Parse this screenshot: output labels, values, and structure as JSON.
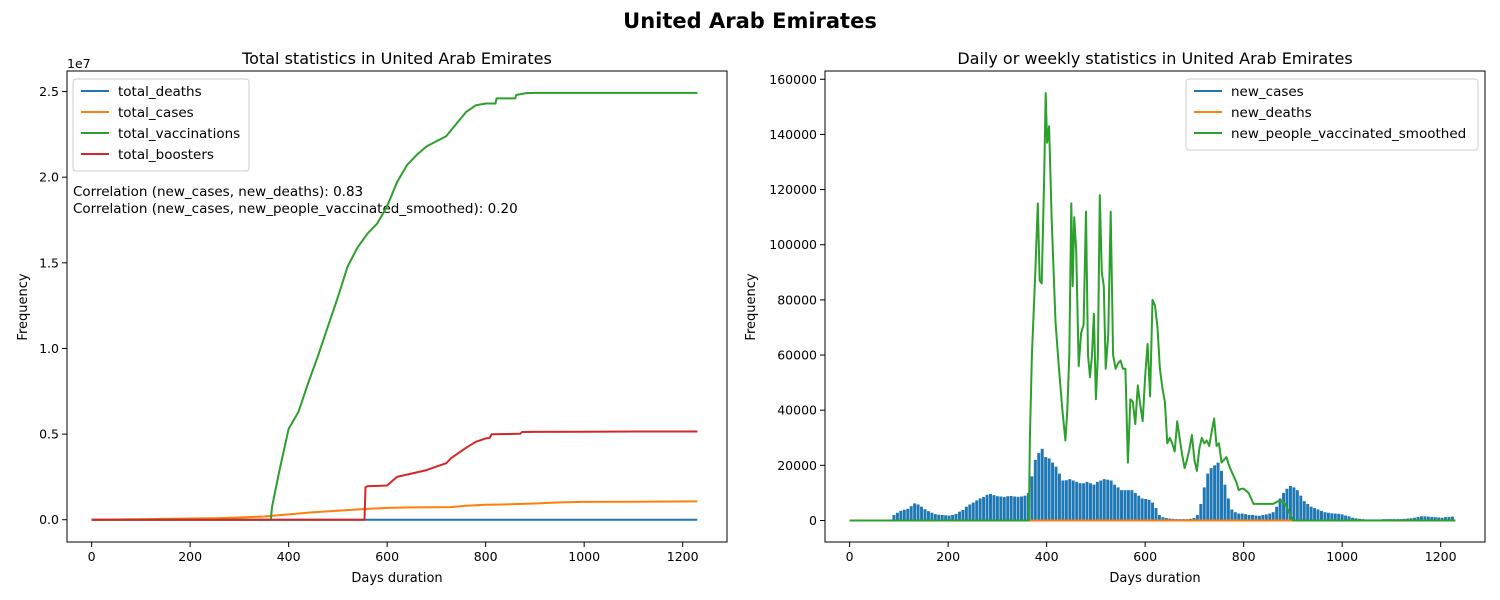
{
  "figure": {
    "title": "United Arab Emirates"
  },
  "chart_data": [
    {
      "type": "line",
      "title": "Total statistics in United Arab Emirates",
      "xlabel": "Days duration",
      "ylabel": "Frequency",
      "xlim": [
        -50,
        1290
      ],
      "ylim": [
        -1300000,
        26200000
      ],
      "offset_label": "1e7",
      "xticks": [
        0,
        200,
        400,
        600,
        800,
        1000,
        1200
      ],
      "yticks": [
        0,
        5000000,
        10000000,
        15000000,
        20000000,
        25000000
      ],
      "ytick_labels": [
        "0.0",
        "0.5",
        "1.0",
        "1.5",
        "2.0",
        "2.5"
      ],
      "legend": {
        "position": "upper-left"
      },
      "annotations": [
        "Correlation (new_cases, new_deaths): 0.83",
        "Correlation (new_cases, new_people_vaccinated_smoothed): 0.20"
      ],
      "series": [
        {
          "name": "total_deaths",
          "color": "#1f77b4",
          "x": [
            0,
            100,
            200,
            300,
            400,
            500,
            600,
            700,
            800,
            900,
            1000,
            1100,
            1230
          ],
          "y": [
            0,
            300,
            700,
            900,
            1500,
            2000,
            2200,
            2300,
            2350,
            2350,
            2350,
            2350,
            2350
          ]
        },
        {
          "name": "total_cases",
          "color": "#ff7f0e",
          "x": [
            0,
            100,
            150,
            200,
            250,
            300,
            350,
            400,
            450,
            500,
            550,
            600,
            650,
            700,
            730,
            760,
            800,
            850,
            900,
            950,
            1000,
            1100,
            1230
          ],
          "y": [
            0,
            30000,
            50000,
            70000,
            90000,
            130000,
            190000,
            310000,
            440000,
            530000,
            620000,
            690000,
            720000,
            730000,
            740000,
            820000,
            880000,
            900000,
            950000,
            1010000,
            1040000,
            1055000,
            1070000
          ]
        },
        {
          "name": "total_vaccinations",
          "color": "#2ca02c",
          "x": [
            0,
            364,
            366,
            380,
            400,
            420,
            440,
            460,
            480,
            500,
            520,
            540,
            560,
            580,
            600,
            620,
            640,
            660,
            680,
            700,
            720,
            740,
            760,
            780,
            800,
            820,
            822,
            860,
            862,
            880,
            900,
            1000,
            1100,
            1230
          ],
          "y": [
            0,
            0,
            700000,
            2700000,
            5300000,
            6300000,
            8000000,
            9600000,
            11300000,
            13000000,
            14800000,
            15900000,
            16700000,
            17300000,
            18300000,
            19700000,
            20700000,
            21300000,
            21800000,
            22100000,
            22400000,
            23100000,
            23800000,
            24200000,
            24300000,
            24300000,
            24600000,
            24600000,
            24800000,
            24900000,
            24920000,
            24920000,
            24920000,
            24920000
          ]
        },
        {
          "name": "total_boosters",
          "color": "#d62728",
          "x": [
            0,
            554,
            556,
            560,
            600,
            604,
            620,
            650,
            680,
            700,
            720,
            730,
            760,
            780,
            800,
            808,
            812,
            870,
            874,
            900,
            1000,
            1100,
            1230
          ],
          "y": [
            0,
            0,
            1900000,
            1950000,
            2000000,
            2100000,
            2500000,
            2700000,
            2900000,
            3100000,
            3300000,
            3600000,
            4200000,
            4550000,
            4750000,
            4770000,
            4990000,
            5020000,
            5120000,
            5130000,
            5140000,
            5150000,
            5150000
          ]
        }
      ]
    },
    {
      "type": "bar-line",
      "title": "Daily or weekly statistics in United Arab Emirates",
      "xlabel": "Days duration",
      "ylabel": "Frequency",
      "xlim": [
        -50,
        1290
      ],
      "ylim": [
        -7800,
        163000
      ],
      "xticks": [
        0,
        200,
        400,
        600,
        800,
        1000,
        1200
      ],
      "yticks": [
        0,
        20000,
        40000,
        60000,
        80000,
        100000,
        120000,
        140000,
        160000
      ],
      "legend": {
        "position": "upper-right"
      },
      "series": [
        {
          "name": "new_cases",
          "kind": "bar",
          "color": "#1f77b4",
          "x": [
            90,
            97,
            104,
            111,
            118,
            125,
            132,
            139,
            146,
            153,
            160,
            167,
            174,
            181,
            188,
            195,
            202,
            209,
            216,
            223,
            230,
            237,
            244,
            251,
            258,
            265,
            272,
            279,
            286,
            293,
            300,
            307,
            314,
            321,
            328,
            335,
            342,
            349,
            356,
            363,
            370,
            377,
            384,
            391,
            398,
            405,
            412,
            419,
            426,
            433,
            440,
            447,
            454,
            461,
            468,
            475,
            482,
            489,
            496,
            503,
            510,
            517,
            524,
            531,
            538,
            545,
            552,
            559,
            566,
            573,
            580,
            587,
            594,
            601,
            608,
            615,
            622,
            629,
            636,
            643,
            650,
            657,
            664,
            671,
            678,
            685,
            692,
            699,
            706,
            713,
            720,
            727,
            734,
            741,
            748,
            755,
            762,
            769,
            776,
            783,
            790,
            797,
            804,
            811,
            818,
            825,
            832,
            839,
            846,
            853,
            860,
            867,
            874,
            881,
            888,
            895,
            902,
            909,
            916,
            923,
            930,
            937,
            944,
            951,
            958,
            965,
            972,
            979,
            986,
            993,
            1000,
            1007,
            1014,
            1021,
            1028,
            1035,
            1042,
            1049,
            1056,
            1063,
            1070,
            1077,
            1084,
            1091,
            1098,
            1105,
            1112,
            1119,
            1126,
            1133,
            1140,
            1147,
            1154,
            1161,
            1168,
            1175,
            1182,
            1189,
            1196,
            1203,
            1210,
            1217,
            1224
          ],
          "y": [
            2000,
            2800,
            3500,
            3900,
            4200,
            5200,
            6200,
            5800,
            5000,
            4100,
            3400,
            2800,
            2300,
            2100,
            2000,
            1900,
            1800,
            2000,
            2400,
            3200,
            3800,
            5000,
            5800,
            6500,
            7300,
            8000,
            8500,
            9300,
            9600,
            9200,
            8800,
            8700,
            8500,
            8800,
            8900,
            8700,
            8600,
            8700,
            9000,
            10000,
            16000,
            22000,
            24500,
            26000,
            23000,
            22500,
            21000,
            19500,
            17000,
            14500,
            14600,
            15000,
            14500,
            14000,
            13500,
            13500,
            14000,
            13500,
            13000,
            14000,
            14500,
            15000,
            14800,
            14500,
            13000,
            12000,
            11000,
            11000,
            11000,
            11000,
            10000,
            9000,
            8000,
            7800,
            7500,
            6500,
            4500,
            2000,
            1200,
            900,
            700,
            600,
            500,
            500,
            500,
            500,
            600,
            900,
            2000,
            6000,
            12000,
            17000,
            19000,
            20000,
            21000,
            18000,
            13000,
            8000,
            4000,
            3000,
            2500,
            2500,
            2300,
            2000,
            2000,
            1800,
            1700,
            2000,
            2200,
            2500,
            3000,
            5000,
            8000,
            10000,
            11500,
            12500,
            12000,
            11000,
            9000,
            7000,
            6000,
            5000,
            4500,
            4000,
            3500,
            3000,
            2800,
            2600,
            2500,
            2400,
            2200,
            1800,
            1500,
            1000,
            800,
            600,
            500,
            400,
            400,
            400,
            400,
            400,
            500,
            500,
            500,
            500,
            500,
            500,
            600,
            700,
            800,
            1000,
            1300,
            1500,
            1500,
            1400,
            1300,
            1200,
            1100,
            1000,
            1200,
            1300,
            1400
          ]
        },
        {
          "name": "new_deaths",
          "kind": "line",
          "color": "#ff7f0e",
          "x": [
            0,
            100,
            200,
            300,
            400,
            500,
            600,
            700,
            800,
            900,
            1000,
            1100,
            1230
          ],
          "y": [
            0,
            3,
            1,
            3,
            10,
            8,
            4,
            1,
            1,
            0,
            0,
            0,
            0
          ]
        },
        {
          "name": "new_people_vaccinated_smoothed",
          "kind": "line",
          "color": "#2ca02c",
          "x": [
            0,
            364,
            366,
            370,
            377,
            382,
            386,
            390,
            395,
            398,
            401,
            405,
            410,
            418,
            425,
            432,
            438,
            442,
            446,
            450,
            453,
            456,
            460,
            465,
            470,
            475,
            480,
            484,
            488,
            492,
            496,
            500,
            504,
            508,
            512,
            516,
            520,
            525,
            530,
            535,
            540,
            545,
            550,
            555,
            560,
            565,
            570,
            575,
            580,
            585,
            590,
            595,
            600,
            605,
            610,
            615,
            620,
            625,
            630,
            635,
            640,
            645,
            650,
            655,
            660,
            665,
            670,
            675,
            680,
            685,
            690,
            695,
            700,
            705,
            710,
            715,
            720,
            725,
            730,
            735,
            740,
            745,
            750,
            755,
            760,
            765,
            770,
            775,
            780,
            785,
            790,
            795,
            800,
            810,
            820,
            830,
            840,
            850,
            860,
            870,
            880,
            885,
            890,
            895,
            900,
            1000,
            1100,
            1230
          ],
          "y": [
            0,
            0,
            30000,
            60000,
            90000,
            115000,
            87000,
            86000,
            125000,
            155000,
            137000,
            143000,
            110000,
            72000,
            55000,
            40000,
            29000,
            40000,
            60000,
            115000,
            85000,
            110000,
            98000,
            56000,
            68000,
            71000,
            112000,
            60000,
            52000,
            60000,
            75000,
            44000,
            60000,
            118000,
            90000,
            85000,
            55000,
            67000,
            112000,
            60000,
            55000,
            57000,
            58000,
            55000,
            55000,
            21000,
            44000,
            43000,
            35000,
            49000,
            42000,
            36000,
            52000,
            64000,
            45000,
            80000,
            78000,
            70000,
            55000,
            48000,
            43000,
            28000,
            30000,
            28000,
            25000,
            36000,
            30000,
            24000,
            19000,
            22000,
            26000,
            31000,
            22000,
            18000,
            26000,
            30000,
            28000,
            29000,
            27000,
            32000,
            37000,
            27000,
            28000,
            21000,
            22000,
            23000,
            20000,
            18000,
            16000,
            14000,
            11000,
            11500,
            11500,
            10000,
            6000,
            6000,
            6000,
            6000,
            6000,
            7000,
            7000,
            5500,
            4000,
            2000,
            0,
            0,
            0,
            0
          ]
        }
      ]
    }
  ]
}
